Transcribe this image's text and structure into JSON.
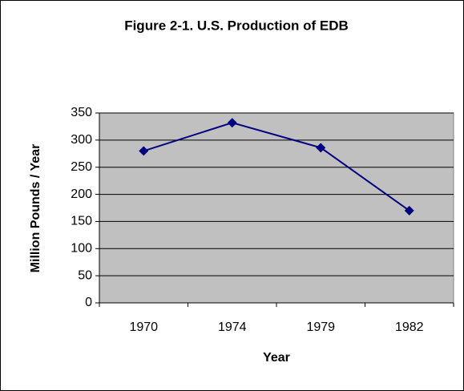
{
  "chart_data": {
    "type": "line",
    "title": "Figure 2-1. U.S. Production of EDB",
    "x_label": "Year",
    "y_label": "Million Pounds / Year",
    "categories": [
      "1970",
      "1974",
      "1979",
      "1982"
    ],
    "series": [
      {
        "name": "U.S. Production of EDB",
        "color": "#000080",
        "values": [
          280,
          332,
          286,
          170
        ]
      }
    ],
    "ylim": [
      0,
      350
    ],
    "yticks": [
      0,
      50,
      100,
      150,
      200,
      250,
      300,
      350
    ],
    "grid": true,
    "plot_background": "#c0c0c0"
  }
}
